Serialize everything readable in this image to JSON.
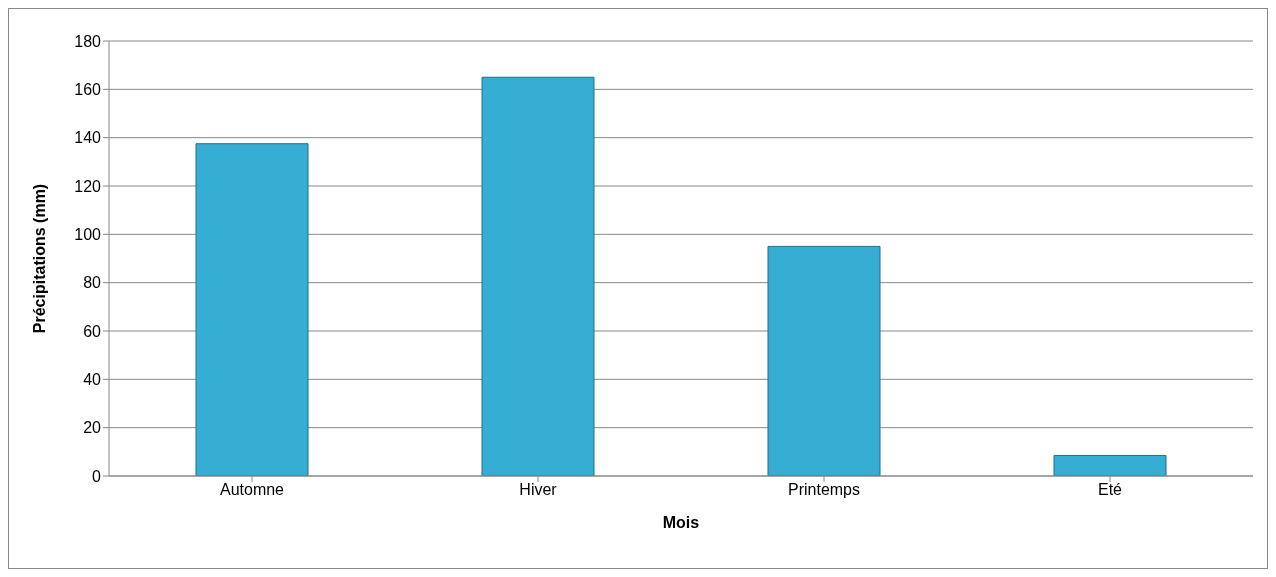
{
  "chart_data": {
    "type": "bar",
    "xlabel": "Mois",
    "ylabel": "Précipitations (mm)",
    "categories": [
      "Automne",
      "Hiver",
      "Printemps",
      "Eté"
    ],
    "values": [
      137.5,
      165,
      95,
      8.5
    ],
    "color": "#36aed3",
    "ylim": [
      0,
      180
    ],
    "yticks": [
      0,
      20,
      40,
      60,
      80,
      100,
      120,
      140,
      160,
      180
    ],
    "grid": "y"
  }
}
